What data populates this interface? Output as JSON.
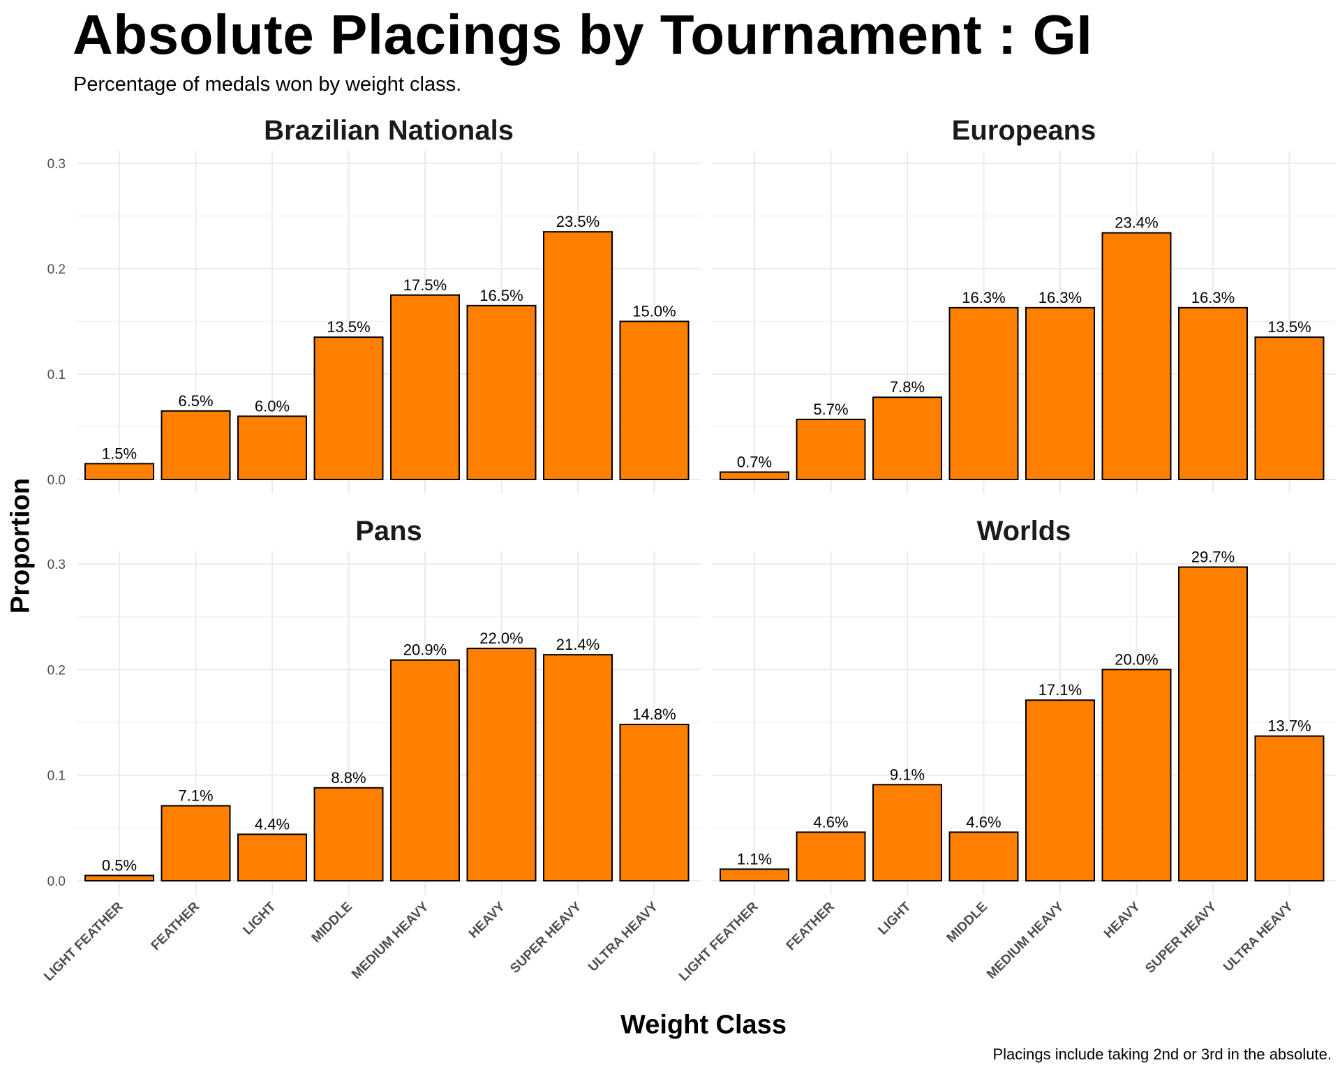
{
  "title": "Absolute Placings by Tournament : GI",
  "subtitle": "Percentage of medals won by weight class.",
  "caption": "Placings include taking 2nd or 3rd in the absolute.",
  "xlabel": "Weight Class",
  "ylabel": "Proportion",
  "colors": {
    "bar_fill": "#FF7F00",
    "bar_stroke": "#000000",
    "grid": "#EBEBEB"
  },
  "chart_data": {
    "type": "bar",
    "facet_layout": "2x2",
    "categories": [
      "LIGHT FEATHER",
      "FEATHER",
      "LIGHT",
      "MIDDLE",
      "MEDIUM HEAVY",
      "HEAVY",
      "SUPER HEAVY",
      "ULTRA HEAVY"
    ],
    "ylim": [
      0,
      0.3
    ],
    "yticks": [
      0.0,
      0.1,
      0.2,
      0.3
    ],
    "ytick_labels": [
      "0.0",
      "0.1",
      "0.2",
      "0.3"
    ],
    "grid": true,
    "panels": [
      {
        "title": "Brazilian Nationals",
        "values": [
          0.015,
          0.065,
          0.06,
          0.135,
          0.175,
          0.165,
          0.235,
          0.15
        ],
        "labels": [
          "1.5%",
          "6.5%",
          "6.0%",
          "13.5%",
          "17.5%",
          "16.5%",
          "23.5%",
          "15.0%"
        ]
      },
      {
        "title": "Europeans",
        "values": [
          0.007,
          0.057,
          0.078,
          0.163,
          0.163,
          0.234,
          0.163,
          0.135
        ],
        "labels": [
          "0.7%",
          "5.7%",
          "7.8%",
          "16.3%",
          "16.3%",
          "23.4%",
          "16.3%",
          "13.5%"
        ]
      },
      {
        "title": "Pans",
        "values": [
          0.005,
          0.071,
          0.044,
          0.088,
          0.209,
          0.22,
          0.214,
          0.148
        ],
        "labels": [
          "0.5%",
          "7.1%",
          "4.4%",
          "8.8%",
          "20.9%",
          "22.0%",
          "21.4%",
          "14.8%"
        ]
      },
      {
        "title": "Worlds",
        "values": [
          0.011,
          0.046,
          0.091,
          0.046,
          0.171,
          0.2,
          0.297,
          0.137
        ],
        "labels": [
          "1.1%",
          "4.6%",
          "9.1%",
          "4.6%",
          "17.1%",
          "20.0%",
          "29.7%",
          "13.7%"
        ]
      }
    ]
  }
}
